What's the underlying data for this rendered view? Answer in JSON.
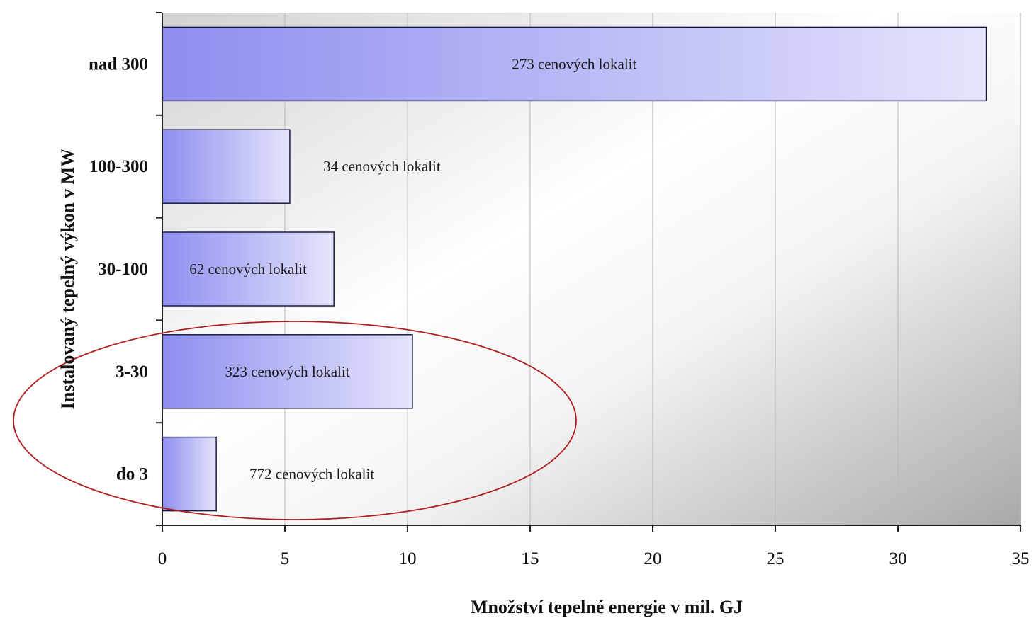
{
  "chart_data": {
    "type": "bar",
    "orientation": "horizontal",
    "title": "",
    "xlabel": "Množství tepelné energie v mil. GJ",
    "ylabel": "Instalovaný tepelný výkon v MW",
    "xlim": [
      0,
      35
    ],
    "x_ticks": [
      "0",
      "5",
      "10",
      "15",
      "20",
      "25",
      "30",
      "35"
    ],
    "grid": "vertical",
    "categories": [
      "nad 300",
      "100-300",
      "30-100",
      "3-30",
      "do 3"
    ],
    "values": [
      33.6,
      5.2,
      7.0,
      10.2,
      2.2
    ],
    "data_labels": [
      "273 cenových lokalit",
      "34 cenových lokalit",
      "62 cenových lokalit",
      "323 cenových lokalit",
      "772 cenových lokalit"
    ],
    "highlight": {
      "shape": "ellipse",
      "color": "#b01e1e",
      "categories": [
        "3-30",
        "do 3"
      ]
    },
    "colors": {
      "bar_dark": "#8e8ef0",
      "bar_light": "#e4e4fc",
      "bar_stroke": "#1a1a40",
      "grid": "#b8b8b8"
    }
  }
}
